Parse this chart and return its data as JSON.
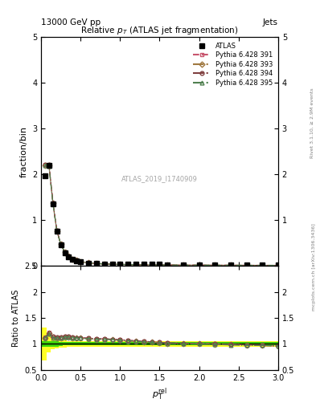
{
  "title": "Relative $p_T$ (ATLAS jet fragmentation)",
  "header_left": "13000 GeV pp",
  "header_right": "Jets",
  "ylabel_main": "fraction/bin",
  "ylabel_ratio": "Ratio to ATLAS",
  "xlabel": "$p_{\\mathrm{T}}^{\\mathrm{rel}}$",
  "watermark": "ATLAS_2019_I1740909",
  "rivet_label": "Rivet 3.1.10, ≥ 2.9M events",
  "mcplots_label": "mcplots.cern.ch [arXiv:1306.3436]",
  "xlim": [
    0.0,
    3.0
  ],
  "ylim_main": [
    0.0,
    5.0
  ],
  "ylim_ratio": [
    0.5,
    2.5
  ],
  "atlas_x": [
    0.05,
    0.1,
    0.15,
    0.2,
    0.25,
    0.3,
    0.35,
    0.4,
    0.45,
    0.5,
    0.6,
    0.7,
    0.8,
    0.9,
    1.0,
    1.1,
    1.2,
    1.3,
    1.4,
    1.5,
    1.6,
    1.8,
    2.0,
    2.2,
    2.4,
    2.6,
    2.8,
    3.0
  ],
  "atlas_y": [
    1.97,
    2.19,
    1.35,
    0.75,
    0.46,
    0.29,
    0.2,
    0.14,
    0.11,
    0.09,
    0.06,
    0.05,
    0.04,
    0.04,
    0.03,
    0.03,
    0.03,
    0.03,
    0.03,
    0.03,
    0.02,
    0.02,
    0.02,
    0.02,
    0.02,
    0.02,
    0.02,
    0.02
  ],
  "atlas_yerr": [
    0.05,
    0.05,
    0.04,
    0.03,
    0.02,
    0.015,
    0.01,
    0.008,
    0.007,
    0.006,
    0.005,
    0.004,
    0.003,
    0.003,
    0.002,
    0.002,
    0.002,
    0.002,
    0.002,
    0.002,
    0.002,
    0.002,
    0.002,
    0.002,
    0.002,
    0.002,
    0.002,
    0.002
  ],
  "py391_y": [
    2.22,
    2.2,
    1.38,
    0.77,
    0.47,
    0.3,
    0.21,
    0.15,
    0.12,
    0.09,
    0.065,
    0.052,
    0.042,
    0.037,
    0.032,
    0.028,
    0.026,
    0.023,
    0.021,
    0.02,
    0.018,
    0.016,
    0.015,
    0.014,
    0.013,
    0.012,
    0.011,
    0.011
  ],
  "py393_y": [
    2.2,
    2.19,
    1.37,
    0.76,
    0.47,
    0.3,
    0.21,
    0.15,
    0.12,
    0.09,
    0.065,
    0.052,
    0.042,
    0.037,
    0.031,
    0.028,
    0.025,
    0.023,
    0.021,
    0.019,
    0.018,
    0.016,
    0.015,
    0.014,
    0.013,
    0.012,
    0.011,
    0.011
  ],
  "py394_y": [
    2.21,
    2.21,
    1.38,
    0.77,
    0.47,
    0.3,
    0.21,
    0.15,
    0.12,
    0.09,
    0.065,
    0.052,
    0.042,
    0.037,
    0.032,
    0.028,
    0.025,
    0.023,
    0.021,
    0.02,
    0.018,
    0.016,
    0.015,
    0.014,
    0.013,
    0.012,
    0.011,
    0.011
  ],
  "py395_y": [
    2.19,
    2.17,
    1.36,
    0.76,
    0.47,
    0.3,
    0.21,
    0.15,
    0.12,
    0.09,
    0.065,
    0.051,
    0.042,
    0.036,
    0.031,
    0.028,
    0.025,
    0.023,
    0.021,
    0.019,
    0.018,
    0.016,
    0.015,
    0.013,
    0.013,
    0.012,
    0.011,
    0.011
  ],
  "ratio_391": [
    1.13,
    1.22,
    1.14,
    1.13,
    1.13,
    1.14,
    1.14,
    1.13,
    1.12,
    1.12,
    1.11,
    1.1,
    1.1,
    1.09,
    1.08,
    1.07,
    1.06,
    1.05,
    1.04,
    1.03,
    1.02,
    1.01,
    1.01,
    1.0,
    0.99,
    0.98,
    0.97,
    0.96
  ],
  "ratio_393": [
    1.12,
    1.2,
    1.13,
    1.12,
    1.12,
    1.13,
    1.13,
    1.12,
    1.12,
    1.11,
    1.1,
    1.09,
    1.09,
    1.08,
    1.07,
    1.06,
    1.05,
    1.04,
    1.03,
    1.02,
    1.01,
    1.01,
    1.0,
    0.99,
    0.99,
    0.98,
    0.97,
    0.96
  ],
  "ratio_394": [
    1.12,
    1.21,
    1.14,
    1.13,
    1.13,
    1.14,
    1.14,
    1.13,
    1.12,
    1.12,
    1.11,
    1.1,
    1.1,
    1.09,
    1.08,
    1.07,
    1.06,
    1.05,
    1.04,
    1.03,
    1.02,
    1.01,
    1.0,
    1.0,
    0.99,
    0.98,
    0.97,
    0.96
  ],
  "ratio_395": [
    1.11,
    1.19,
    1.12,
    1.11,
    1.12,
    1.13,
    1.13,
    1.12,
    1.11,
    1.11,
    1.1,
    1.09,
    1.09,
    1.08,
    1.07,
    1.06,
    1.05,
    1.04,
    1.03,
    1.02,
    1.01,
    1.0,
    1.0,
    0.99,
    0.98,
    0.97,
    0.97,
    0.96
  ],
  "green_band_low": [
    0.95,
    0.95,
    0.95,
    0.95,
    0.96,
    0.97,
    0.97,
    0.97,
    0.97,
    0.97,
    0.97,
    0.97,
    0.97,
    0.97,
    0.97,
    0.97,
    0.97,
    0.97,
    0.97,
    0.97,
    0.97,
    0.97,
    0.97,
    0.97,
    0.97,
    0.97,
    0.97,
    0.97
  ],
  "green_band_high": [
    1.05,
    1.05,
    1.05,
    1.05,
    1.04,
    1.03,
    1.03,
    1.03,
    1.03,
    1.03,
    1.03,
    1.03,
    1.03,
    1.03,
    1.03,
    1.03,
    1.03,
    1.03,
    1.03,
    1.03,
    1.03,
    1.03,
    1.03,
    1.03,
    1.03,
    1.03,
    1.03,
    1.03
  ],
  "yellow_band_low": [
    0.68,
    0.83,
    0.9,
    0.92,
    0.93,
    0.93,
    0.94,
    0.94,
    0.94,
    0.94,
    0.94,
    0.94,
    0.94,
    0.94,
    0.94,
    0.94,
    0.94,
    0.94,
    0.94,
    0.94,
    0.94,
    0.94,
    0.94,
    0.94,
    0.94,
    0.94,
    0.94,
    0.94
  ],
  "yellow_band_high": [
    1.32,
    1.17,
    1.1,
    1.08,
    1.07,
    1.07,
    1.06,
    1.06,
    1.06,
    1.06,
    1.06,
    1.06,
    1.06,
    1.06,
    1.06,
    1.06,
    1.06,
    1.06,
    1.06,
    1.06,
    1.06,
    1.06,
    1.06,
    1.06,
    1.06,
    1.06,
    1.06,
    1.06
  ],
  "color_391": "#c8566e",
  "color_393": "#a07840",
  "color_394": "#804040",
  "color_395": "#508050",
  "atlas_color": "black",
  "legend_labels": [
    "ATLAS",
    "Pythia 6.428 391",
    "Pythia 6.428 393",
    "Pythia 6.428 394",
    "Pythia 6.428 395"
  ]
}
